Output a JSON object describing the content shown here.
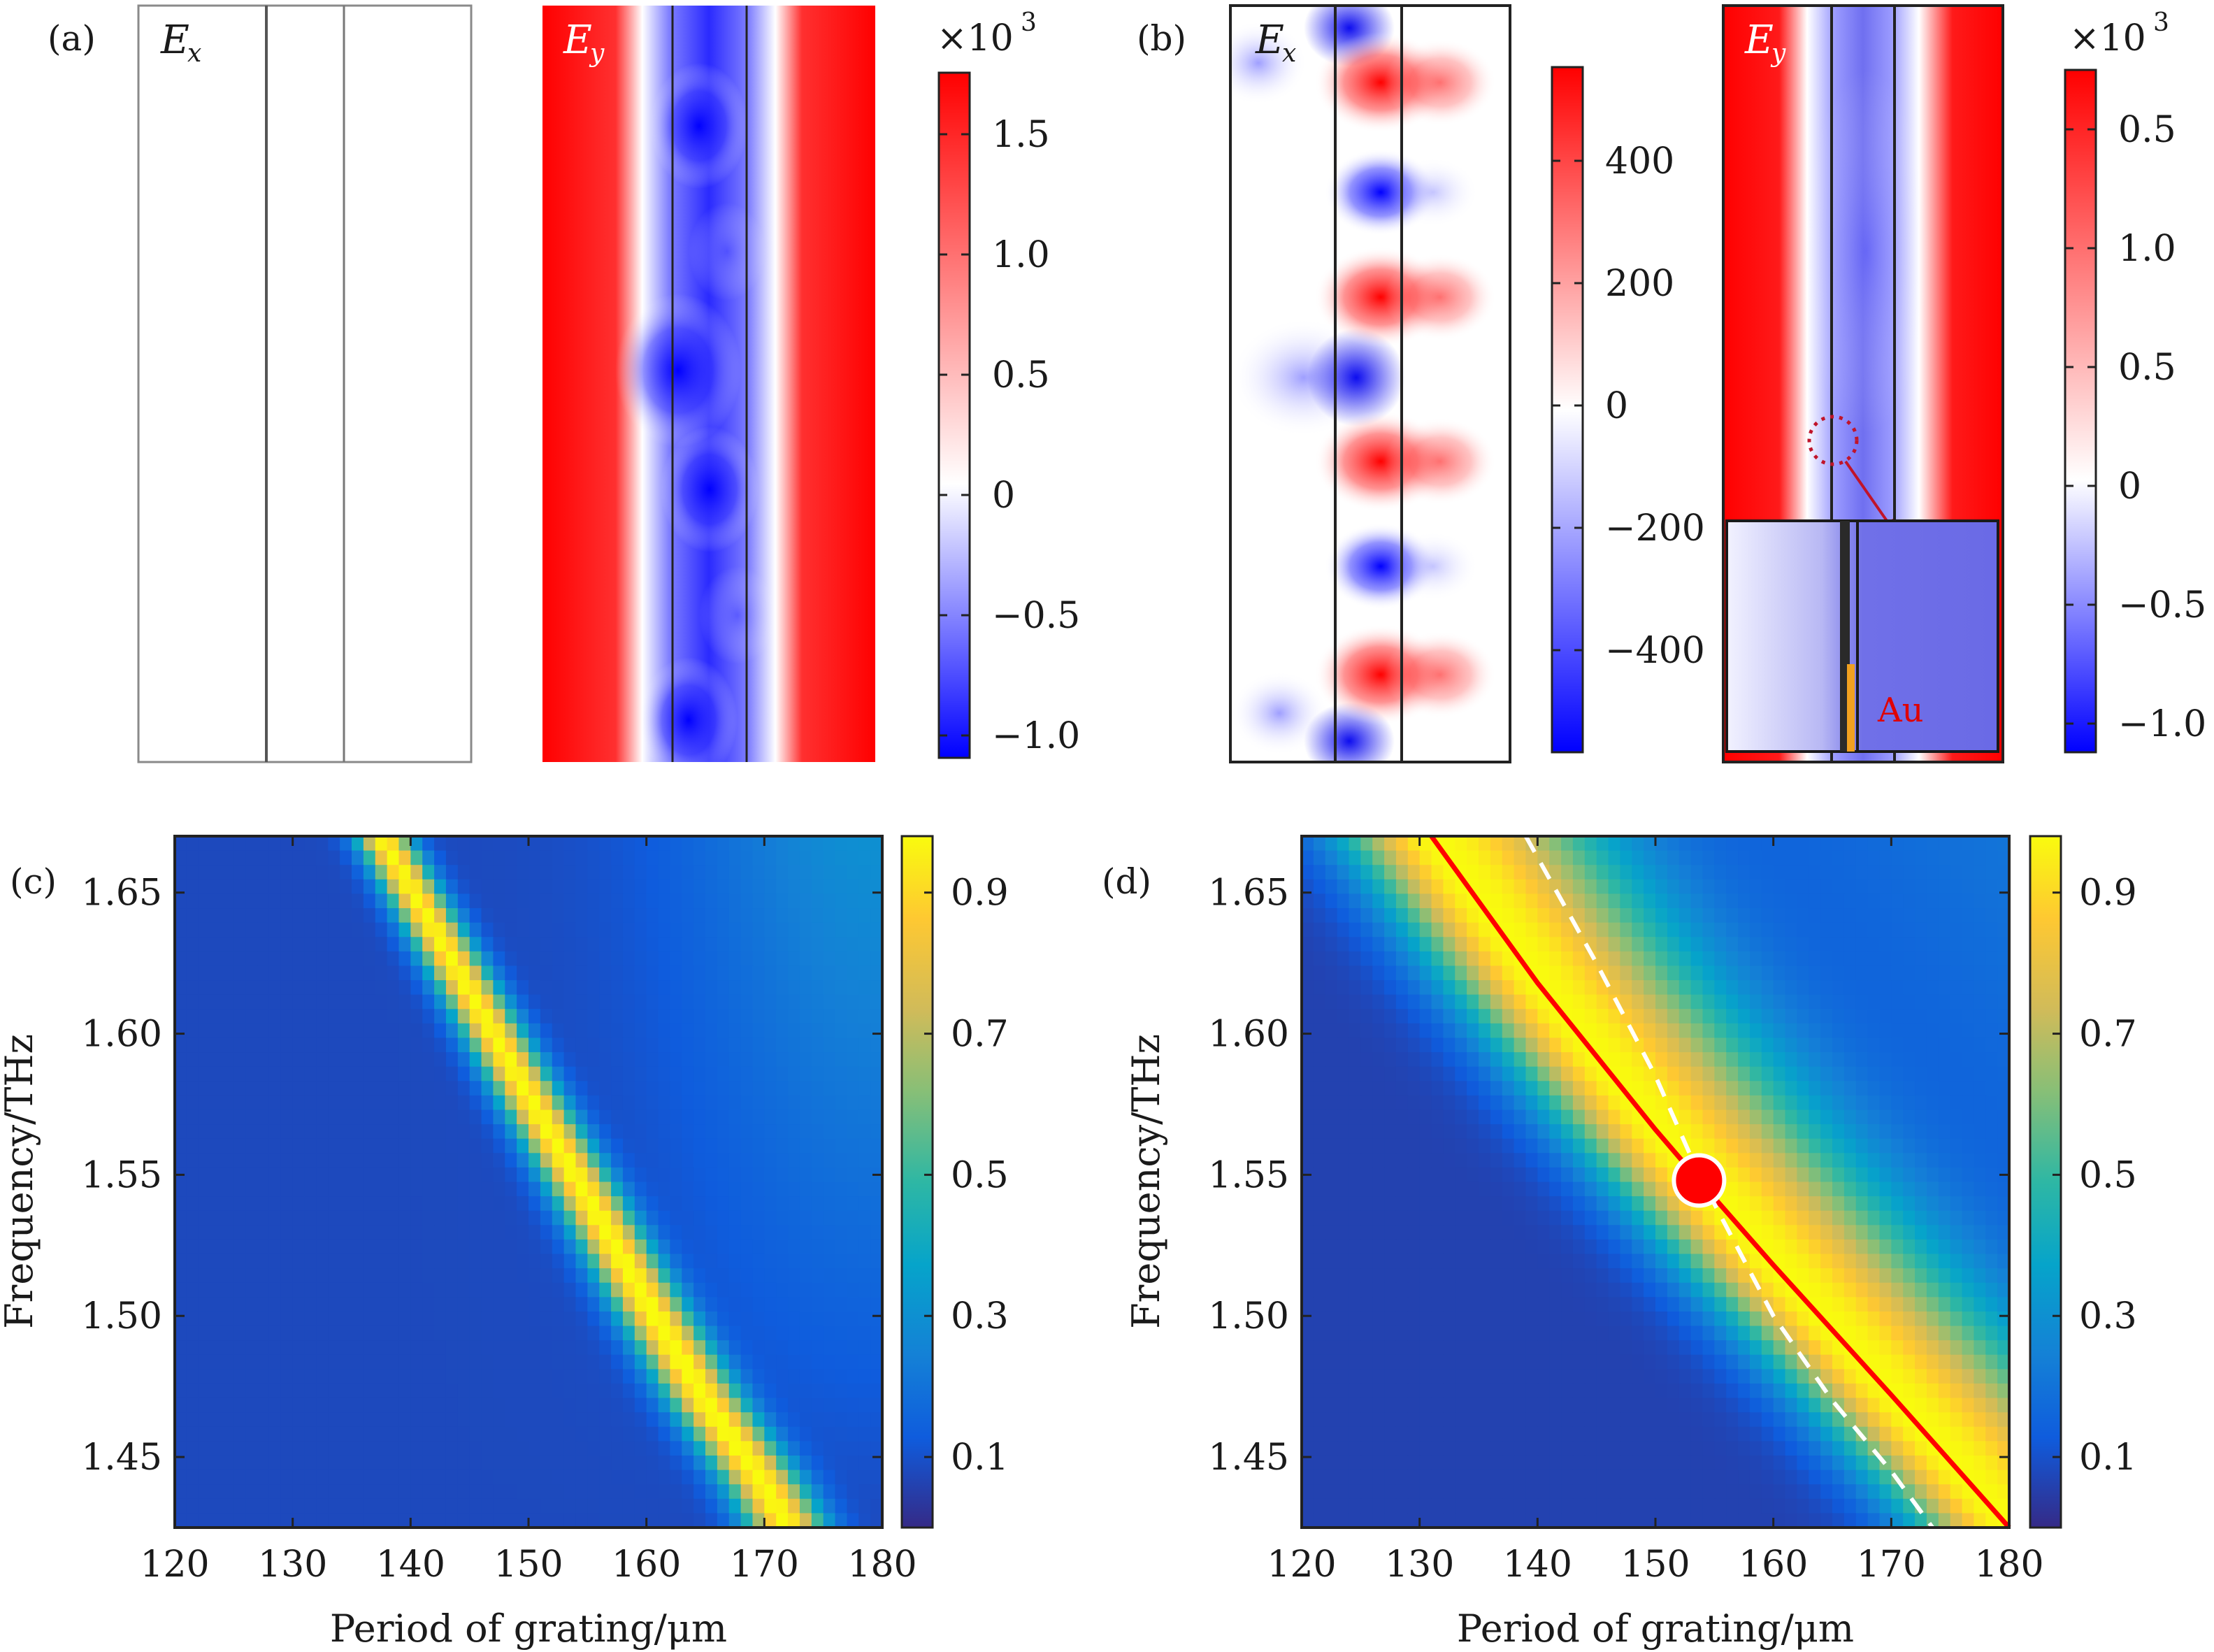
{
  "colors": {
    "field_positive": "#ff0000",
    "field_zero": "#ffffff",
    "field_negative": "#0000ff",
    "parula_low": "#352a87",
    "parula_high": "#f9fb0e",
    "fit_curve": "#ff0000",
    "dashed_curve": "#ffffff",
    "marker": "#ff0000",
    "inset_metal": "#f0a020",
    "inset_label": "#e00000",
    "frame": "#222222"
  },
  "panels": {
    "a": {
      "label": "(a)",
      "ex_label": "E",
      "ex_sub": "x",
      "ey_label": "E",
      "ey_sub": "y",
      "scale_prefix": "×10",
      "scale_exp": "3",
      "colorbar_ticks": [
        "1.5",
        "1.0",
        "0.5",
        "0",
        "−0.5",
        "−1.0"
      ]
    },
    "b": {
      "label": "(b)",
      "ex_label": "E",
      "ex_sub": "x",
      "ey_label": "E",
      "ey_sub": "y",
      "ex_colorbar_ticks": [
        "400",
        "200",
        "0",
        "−200",
        "−400"
      ],
      "ey_scale_prefix": "×10",
      "ey_scale_exp": "3",
      "ey_colorbar_ticks": [
        "0.5",
        "1.0",
        "0.5",
        "0",
        "−0.5",
        "−1.0"
      ],
      "inset_label": "Au"
    },
    "c": {
      "label": "(c)"
    },
    "d": {
      "label": "(d)"
    }
  },
  "chart_data": [
    {
      "panel": "c",
      "type": "heatmap",
      "xlabel": "Period of grating/μm",
      "ylabel": "Frequency/THz",
      "xlim": [
        120,
        180
      ],
      "ylim": [
        1.425,
        1.67
      ],
      "xticks": [
        "120",
        "130",
        "140",
        "150",
        "160",
        "170",
        "180"
      ],
      "yticks": [
        "1.45",
        "1.50",
        "1.55",
        "1.60",
        "1.65"
      ],
      "colorbar_ticks": [
        "0.1",
        "0.3",
        "0.5",
        "0.7",
        "0.9"
      ],
      "colorbar_range": [
        0,
        0.98
      ],
      "resonance_ridge": {
        "x": [
          137.5,
          145,
          150,
          155,
          160,
          165,
          170,
          172
        ],
        "y": [
          1.67,
          1.615,
          1.578,
          1.542,
          1.505,
          1.47,
          1.44,
          1.425
        ],
        "peak_value": 0.97
      }
    },
    {
      "panel": "d",
      "type": "heatmap",
      "xlabel": "Period of grating/μm",
      "ylabel": "Frequency/THz",
      "xlim": [
        120,
        180
      ],
      "ylim": [
        1.425,
        1.67
      ],
      "xticks": [
        "120",
        "130",
        "140",
        "150",
        "160",
        "170",
        "180"
      ],
      "yticks": [
        "1.45",
        "1.50",
        "1.55",
        "1.60",
        "1.65"
      ],
      "colorbar_ticks": [
        "0.1",
        "0.3",
        "0.5",
        "0.7",
        "0.9"
      ],
      "colorbar_range": [
        0,
        0.98
      ],
      "series": [
        {
          "style": "solid",
          "color": "#ff0000",
          "x": [
            131,
            140,
            150,
            153.7,
            160,
            170,
            180
          ],
          "y": [
            1.67,
            1.618,
            1.566,
            1.548,
            1.518,
            1.472,
            1.425
          ]
        },
        {
          "style": "dashed",
          "color": "#ffffff",
          "x": [
            139,
            145,
            150,
            153.7,
            160,
            165,
            170,
            173.5
          ],
          "y": [
            1.67,
            1.625,
            1.585,
            1.55,
            1.5,
            1.47,
            1.445,
            1.425
          ]
        }
      ],
      "marker": {
        "x": 153.7,
        "y": 1.548
      }
    }
  ]
}
